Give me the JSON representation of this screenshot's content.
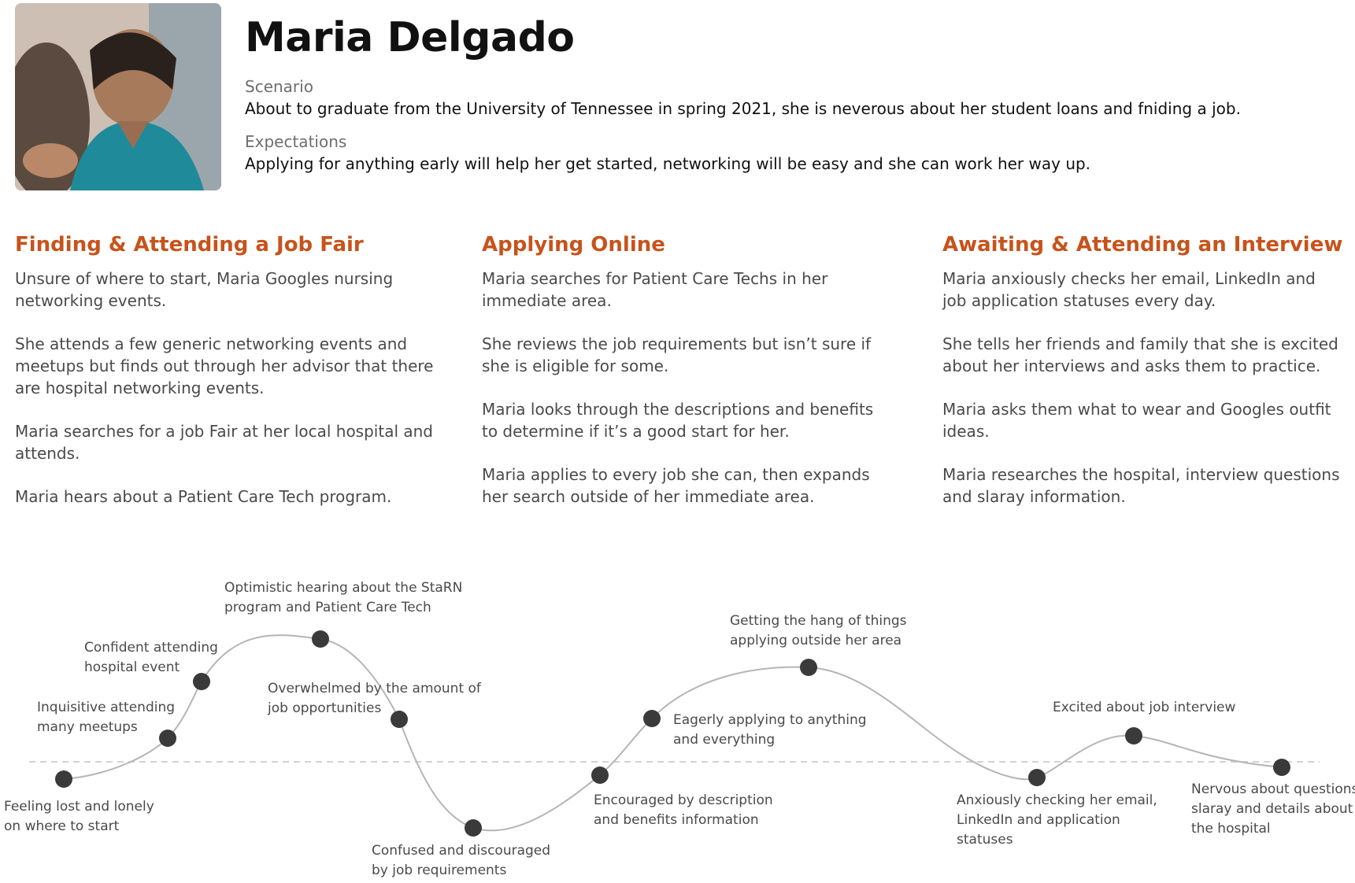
{
  "persona": {
    "name": "Maria Delgado",
    "scenario_label": "Scenario",
    "scenario": "About to graduate from the University of Tennessee in spring 2021, she is neverous about her student loans and fniding a job.",
    "expectations_label": "Expectations",
    "expectations": "Applying for anything early will help her get started, networking will be easy and she can work her way up."
  },
  "phases": [
    {
      "title": "Finding & Attending a Job Fair",
      "paragraphs": [
        "Unsure of where to start, Maria Googles nursing networking events.",
        "She attends a few generic networking events and meetups but finds out through her advisor that there are hospital networking events.",
        "Maria searches for a job Fair at her local hospital and attends.",
        "Maria hears about a Patient Care Tech program."
      ]
    },
    {
      "title": "Applying Online",
      "paragraphs": [
        "Maria searches for Patient Care Techs in her immediate area.",
        "She reviews the job requirements but isn’t sure if she is eligible for some.",
        "Maria looks through the descriptions and benefits to determine if it’s a good start for her.",
        "Maria applies to every job she can, then expands her search outside of her immediate area."
      ]
    },
    {
      "title": "Awaiting & Attending an Interview",
      "paragraphs": [
        "Maria anxiously checks her email, LinkedIn and job application statuses every day.",
        "She tells her friends and family that she is excited about her interviews and asks them to practice.",
        "Maria asks them what to wear and Googles outfit ideas.",
        "Maria researches the hospital, interview questions and slaray information."
      ]
    }
  ],
  "emotions": [
    {
      "lines": [
        "Feeling lost and lonely",
        "on where to start"
      ]
    },
    {
      "lines": [
        "Inquisitive attending",
        "many meetups"
      ]
    },
    {
      "lines": [
        "Confident attending",
        "hospital event"
      ]
    },
    {
      "lines": [
        "Optimistic hearing  about the StaRN",
        "program and Patient Care Tech"
      ]
    },
    {
      "lines": [
        "Overwhelmed by the amount of",
        "job opportunities"
      ]
    },
    {
      "lines": [
        "Confused and discouraged",
        "by job requirements"
      ]
    },
    {
      "lines": [
        "Encouraged by description",
        "and benefits information"
      ]
    },
    {
      "lines": [
        "Eagerly applying to anything",
        "and everything"
      ]
    },
    {
      "lines": [
        "Getting the hang of things",
        "applying outside her area"
      ]
    },
    {
      "lines": [
        "Anxiously checking her email,",
        "LinkedIn and application",
        "statuses"
      ]
    },
    {
      "lines": [
        "Excited about job interview"
      ]
    },
    {
      "lines": [
        "Nervous about questions,",
        "slaray and details about",
        "the hospital"
      ]
    }
  ],
  "colors": {
    "accent": "#c7531b",
    "dot": "#3a3a3a",
    "curve": "#b5b5b5",
    "baseline": "#c4c4c4"
  }
}
